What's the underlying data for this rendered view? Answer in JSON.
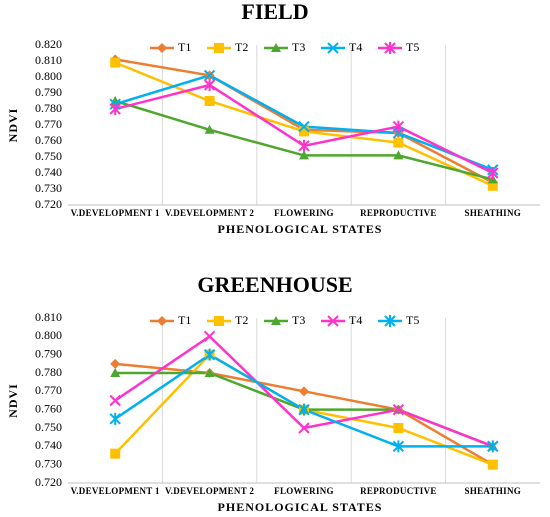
{
  "chart_data": [
    {
      "type": "line",
      "title": "FIELD",
      "x_label": "PHENOLOGICAL STATES",
      "y_label": "NDVI",
      "categories": [
        "V.DEVELOPMENT 1",
        "V.DEVELOPMENT 2",
        "FLOWERING",
        "REPRODUCTIVE",
        "SHEATHING"
      ],
      "ylim": [
        0.72,
        0.82
      ],
      "yticks": [
        {
          "value": 0.72,
          "label": "0.720"
        },
        {
          "value": 0.73,
          "label": "0.730"
        },
        {
          "value": 0.74,
          "label": "0.740"
        },
        {
          "value": 0.75,
          "label": "0.750"
        },
        {
          "value": 0.76,
          "label": "0.760"
        },
        {
          "value": 0.77,
          "label": "0.770"
        },
        {
          "value": 0.78,
          "label": "0.780"
        },
        {
          "value": 0.79,
          "label": "0.790"
        },
        {
          "value": 0.8,
          "label": "0.800"
        },
        {
          "value": 0.81,
          "label": "0.810"
        },
        {
          "value": 0.82,
          "label": "0.820"
        }
      ],
      "legend": "top",
      "series": [
        {
          "name": "T1",
          "color": "#ed7d31",
          "marker": "diamond",
          "values": [
            0.811,
            0.801,
            0.767,
            0.765,
            0.734
          ]
        },
        {
          "name": "T2",
          "color": "#ffc000",
          "marker": "square",
          "values": [
            0.809,
            0.785,
            0.766,
            0.759,
            0.732
          ]
        },
        {
          "name": "T3",
          "color": "#4ea72e",
          "marker": "triangle",
          "values": [
            0.785,
            0.767,
            0.751,
            0.751,
            0.736
          ]
        },
        {
          "name": "T4",
          "color": "#00b0f0",
          "marker": "x",
          "values": [
            0.783,
            0.801,
            0.769,
            0.765,
            0.742
          ]
        },
        {
          "name": "T5",
          "color": "#ff33cc",
          "marker": "star",
          "values": [
            0.78,
            0.795,
            0.757,
            0.769,
            0.74
          ]
        }
      ]
    },
    {
      "type": "line",
      "title": "GREENHOUSE",
      "x_label": "PHENOLOGICAL STATES",
      "y_label": "NDVI",
      "categories": [
        "V.DEVELOPMENT 1",
        "V.DEVELOPMENT 2",
        "FLOWERING",
        "REPRODUCTIVE",
        "SHEATHING"
      ],
      "ylim": [
        0.72,
        0.81
      ],
      "yticks": [
        {
          "value": 0.72,
          "label": "0.720"
        },
        {
          "value": 0.73,
          "label": "0.730"
        },
        {
          "value": 0.74,
          "label": "0.740"
        },
        {
          "value": 0.75,
          "label": "0.750"
        },
        {
          "value": 0.76,
          "label": "0.760"
        },
        {
          "value": 0.77,
          "label": "0.770"
        },
        {
          "value": 0.78,
          "label": "0.780"
        },
        {
          "value": 0.79,
          "label": "0.790"
        },
        {
          "value": 0.8,
          "label": "0.800"
        },
        {
          "value": 0.81,
          "label": "0.810"
        }
      ],
      "legend": "top",
      "series": [
        {
          "name": "T1",
          "color": "#ed7d31",
          "marker": "diamond",
          "values": [
            0.785,
            0.78,
            0.77,
            0.76,
            0.73
          ]
        },
        {
          "name": "T2",
          "color": "#ffc000",
          "marker": "square",
          "values": [
            0.736,
            0.79,
            0.76,
            0.75,
            0.73
          ]
        },
        {
          "name": "T3",
          "color": "#4ea72e",
          "marker": "triangle",
          "values": [
            0.78,
            0.78,
            0.76,
            0.76,
            0.74
          ]
        },
        {
          "name": "T4",
          "color": "#ff33cc",
          "marker": "x",
          "values": [
            0.765,
            0.8,
            0.75,
            0.76,
            0.74
          ]
        },
        {
          "name": "T5",
          "color": "#00b0f0",
          "marker": "star",
          "values": [
            0.755,
            0.79,
            0.76,
            0.74,
            0.74
          ]
        }
      ]
    }
  ]
}
